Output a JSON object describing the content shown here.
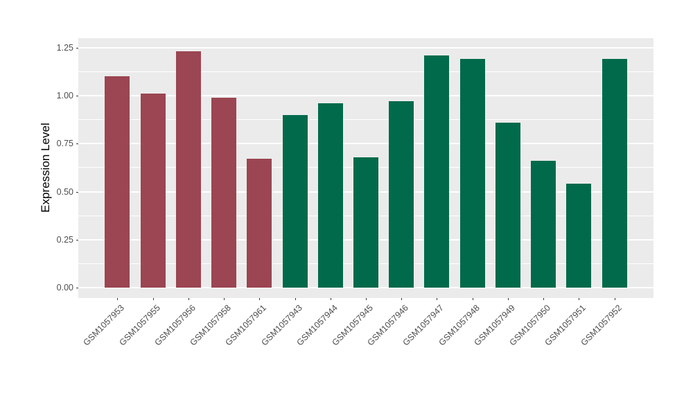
{
  "chart_data": {
    "type": "bar",
    "title": "",
    "xlabel": "",
    "ylabel": "Expression Level",
    "categories": [
      "GSM1057953",
      "GSM1057955",
      "GSM1057956",
      "GSM1057958",
      "GSM1057961",
      "GSM1057943",
      "GSM1057944",
      "GSM1057945",
      "GSM1057946",
      "GSM1057947",
      "GSM1057948",
      "GSM1057949",
      "GSM1057950",
      "GSM1057951",
      "GSM1057952"
    ],
    "values": [
      1.1,
      1.01,
      1.23,
      0.99,
      0.67,
      0.9,
      0.96,
      0.68,
      0.97,
      1.21,
      1.19,
      0.86,
      0.66,
      0.54,
      1.19
    ],
    "bar_groups": [
      0,
      0,
      0,
      0,
      0,
      1,
      1,
      1,
      1,
      1,
      1,
      1,
      1,
      1,
      1
    ],
    "group_colors": [
      "#9B4652",
      "#016A4B"
    ],
    "ylim": [
      -0.054,
      1.3
    ],
    "yticks": [
      0,
      0.25,
      0.5,
      0.75,
      1.0,
      1.25
    ],
    "ytick_labels": [
      "0.00",
      "0.25",
      "0.50",
      "0.75",
      "1.00",
      "1.25"
    ],
    "grid": "on",
    "minor_gridlines": true,
    "legend": "none",
    "x_label_angle": 45,
    "panel_bg": "#EBEBEB",
    "grid_color": "#FFFFFF",
    "axis_text_color": "#4D4D4D",
    "tick_mark_color": "#333333"
  }
}
